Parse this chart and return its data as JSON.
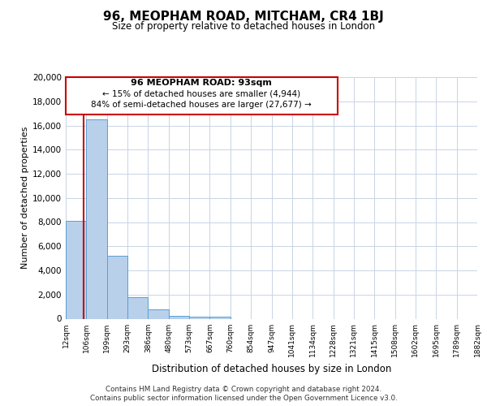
{
  "title": "96, MEOPHAM ROAD, MITCHAM, CR4 1BJ",
  "subtitle": "Size of property relative to detached houses in London",
  "xlabel": "Distribution of detached houses by size in London",
  "ylabel": "Number of detached properties",
  "bins": [
    "12sqm",
    "106sqm",
    "199sqm",
    "293sqm",
    "386sqm",
    "480sqm",
    "573sqm",
    "667sqm",
    "760sqm",
    "854sqm",
    "947sqm",
    "1041sqm",
    "1134sqm",
    "1228sqm",
    "1321sqm",
    "1415sqm",
    "1508sqm",
    "1602sqm",
    "1695sqm",
    "1789sqm",
    "1882sqm"
  ],
  "values": [
    8100,
    16500,
    5200,
    1800,
    800,
    250,
    200,
    150,
    0,
    0,
    0,
    0,
    0,
    0,
    0,
    0,
    0,
    0,
    0,
    0
  ],
  "bar_color": "#b8d0ea",
  "bar_edge_color": "#5a9fd4",
  "annotation_line_color": "#cc0000",
  "annotation_box_color": "#ffffff",
  "annotation_box_edge": "#cc0000",
  "property_label": "96 MEOPHAM ROAD: 93sqm",
  "pct_smaller": 15,
  "n_smaller": 4944,
  "pct_larger_semi": 84,
  "n_larger_semi": 27677,
  "ylim": [
    0,
    20000
  ],
  "yticks": [
    0,
    2000,
    4000,
    6000,
    8000,
    10000,
    12000,
    14000,
    16000,
    18000,
    20000
  ],
  "footer_line1": "Contains HM Land Registry data © Crown copyright and database right 2024.",
  "footer_line2": "Contains public sector information licensed under the Open Government Licence v3.0.",
  "bg_color": "#ffffff",
  "grid_color": "#c8d4e4",
  "red_line_x": 0.86
}
